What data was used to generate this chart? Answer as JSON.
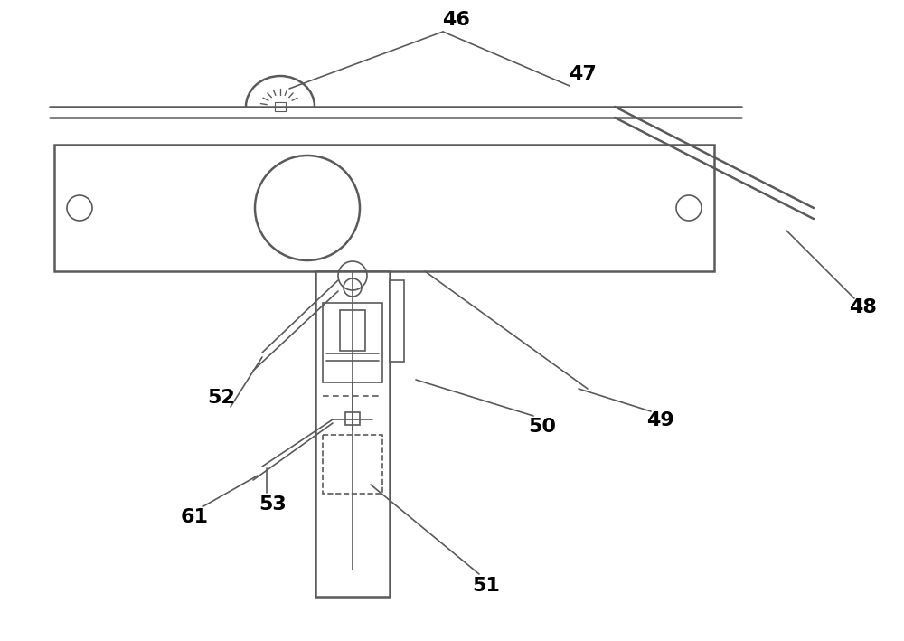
{
  "line_color": "#5a5a5a",
  "lw1": 1.2,
  "lw2": 1.8,
  "lw3": 2.2,
  "label_fontsize": 16,
  "fig_w": 10.0,
  "fig_h": 7.09
}
